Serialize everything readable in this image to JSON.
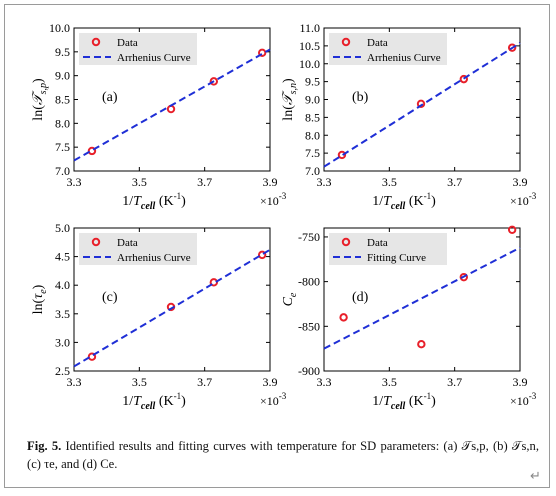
{
  "figure": {
    "caption_label": "Fig. 5.",
    "caption_text": "Identified results and fitting curves with temperature for SD parameters: (a) 𝒯s,p, (b) 𝒯s,n, (c) τe, and (d) Ce.",
    "exponent_label": "×10",
    "exponent_power": "-3",
    "colors": {
      "data_marker": "#e8202a",
      "fit_line": "#1f2fd6",
      "legend_bg": "#e6e6e6",
      "axis": "#000000"
    }
  },
  "chart_data": [
    {
      "type": "scatter",
      "panel_label": "(a)",
      "ylabel": "ln(𝒯s,p)",
      "xlabel": "1/Tcell (K-1)",
      "xlim": [
        3.3,
        3.9
      ],
      "xticks": [
        3.3,
        3.5,
        3.7,
        3.9
      ],
      "xticklabels": [
        "3.3",
        "3.5",
        "3.7",
        "3.9"
      ],
      "ylim": [
        7.0,
        10.0
      ],
      "yticks": [
        7.0,
        7.5,
        8.0,
        8.5,
        9.0,
        9.5,
        10.0
      ],
      "yticklabels": [
        "7.0",
        "7.5",
        "8.0",
        "8.5",
        "9.0",
        "9.5",
        "10.0"
      ],
      "legend": {
        "position": "top-left",
        "entries": [
          "Data",
          "Arrhenius Curve"
        ]
      },
      "series": [
        {
          "name": "Data",
          "kind": "markers",
          "x": [
            3.355,
            3.597,
            3.728,
            3.876
          ],
          "y": [
            7.42,
            8.3,
            8.88,
            9.48
          ]
        },
        {
          "name": "Arrhenius Curve",
          "kind": "dashed-line",
          "x": [
            3.3,
            3.9
          ],
          "y": [
            7.22,
            9.55
          ]
        }
      ]
    },
    {
      "type": "scatter",
      "panel_label": "(b)",
      "ylabel": "ln(𝒯s,n)",
      "xlabel": "1/Tcell (K-1)",
      "xlim": [
        3.3,
        3.9
      ],
      "xticks": [
        3.3,
        3.5,
        3.7,
        3.9
      ],
      "xticklabels": [
        "3.3",
        "3.5",
        "3.7",
        "3.9"
      ],
      "ylim": [
        7.0,
        11.0
      ],
      "yticks": [
        7.0,
        7.5,
        8.0,
        8.5,
        9.0,
        9.5,
        10.0,
        10.5,
        11.0
      ],
      "yticklabels": [
        "7.0",
        "7.5",
        "8.0",
        "8.5",
        "9.0",
        "9.5",
        "10.0",
        "10.5",
        "11.0"
      ],
      "legend": {
        "position": "top-left",
        "entries": [
          "Data",
          "Arrhenius Curve"
        ]
      },
      "series": [
        {
          "name": "Data",
          "kind": "markers",
          "x": [
            3.355,
            3.597,
            3.728,
            3.876
          ],
          "y": [
            7.45,
            8.88,
            9.57,
            10.45
          ]
        },
        {
          "name": "Arrhenius Curve",
          "kind": "dashed-line",
          "x": [
            3.3,
            3.9
          ],
          "y": [
            7.12,
            10.58
          ]
        }
      ]
    },
    {
      "type": "scatter",
      "panel_label": "(c)",
      "ylabel": "ln(τe)",
      "xlabel": "1/Tcell (K-1)",
      "xlim": [
        3.3,
        3.9
      ],
      "xticks": [
        3.3,
        3.5,
        3.7,
        3.9
      ],
      "xticklabels": [
        "3.3",
        "3.5",
        "3.7",
        "3.9"
      ],
      "ylim": [
        2.5,
        5.0
      ],
      "yticks": [
        2.5,
        3.0,
        3.5,
        4.0,
        4.5,
        5.0
      ],
      "yticklabels": [
        "2.5",
        "3.0",
        "3.5",
        "4.0",
        "4.5",
        "5.0"
      ],
      "legend": {
        "position": "top-left",
        "entries": [
          "Data",
          "Arrhenius Curve"
        ]
      },
      "series": [
        {
          "name": "Data",
          "kind": "markers",
          "x": [
            3.355,
            3.597,
            3.728,
            3.876
          ],
          "y": [
            2.75,
            3.62,
            4.05,
            4.53
          ]
        },
        {
          "name": "Arrhenius Curve",
          "kind": "dashed-line",
          "x": [
            3.3,
            3.9
          ],
          "y": [
            2.58,
            4.62
          ]
        }
      ]
    },
    {
      "type": "scatter",
      "panel_label": "(d)",
      "ylabel": "Ce",
      "xlabel": "1/Tcell (K-1)",
      "xlim": [
        3.3,
        3.9
      ],
      "xticks": [
        3.3,
        3.5,
        3.7,
        3.9
      ],
      "xticklabels": [
        "3.3",
        "3.5",
        "3.7",
        "3.9"
      ],
      "ylim": [
        -900,
        -740
      ],
      "yticks": [
        -900,
        -850,
        -800,
        -750
      ],
      "yticklabels": [
        "-900",
        "-850",
        "-800",
        "-750"
      ],
      "legend": {
        "position": "top-left",
        "entries": [
          "Data",
          "Fitting Curve"
        ]
      },
      "series": [
        {
          "name": "Data",
          "kind": "markers",
          "x": [
            3.36,
            3.598,
            3.728,
            3.876
          ],
          "y": [
            -840,
            -870,
            -795,
            -742
          ]
        },
        {
          "name": "Fitting Curve",
          "kind": "dashed-line",
          "x": [
            3.3,
            3.9
          ],
          "y": [
            -875,
            -762
          ]
        }
      ]
    }
  ]
}
